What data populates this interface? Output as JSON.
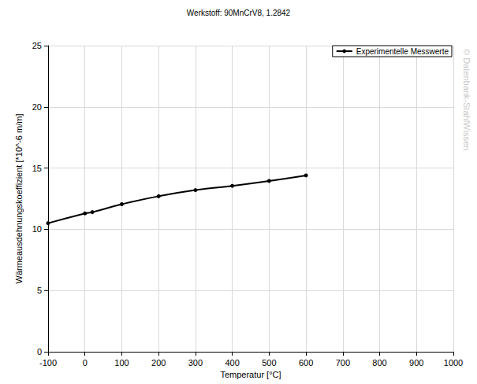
{
  "chart_data": {
    "type": "line",
    "title": "Werkstoff: 90MnCrV8, 1.2842",
    "x_label": "Temperatur [°C]",
    "y_label": "Wärmeausdehnungskoeffizient [*10^-6 m/m]",
    "annotations": [
      "© Datenbank-StahlWissen"
    ],
    "x": [
      -100,
      0,
      20,
      100,
      200,
      300,
      400,
      500,
      600
    ],
    "series": [
      {
        "name": "Experimentelle Messwerte",
        "color": "#000000",
        "marker": "circle",
        "line_style": "solid",
        "values": [
          10.5,
          11.3,
          11.4,
          12.05,
          12.7,
          13.2,
          13.55,
          13.95,
          14.4
        ]
      }
    ],
    "xlim": [
      -100,
      1000
    ],
    "xticks": [
      -100,
      0,
      100,
      200,
      300,
      400,
      500,
      600,
      700,
      800,
      900,
      1000
    ],
    "ylim": [
      0,
      25
    ],
    "yticks": [
      0,
      5,
      10,
      15,
      20,
      25
    ],
    "grid": true,
    "legend": "upper right"
  }
}
